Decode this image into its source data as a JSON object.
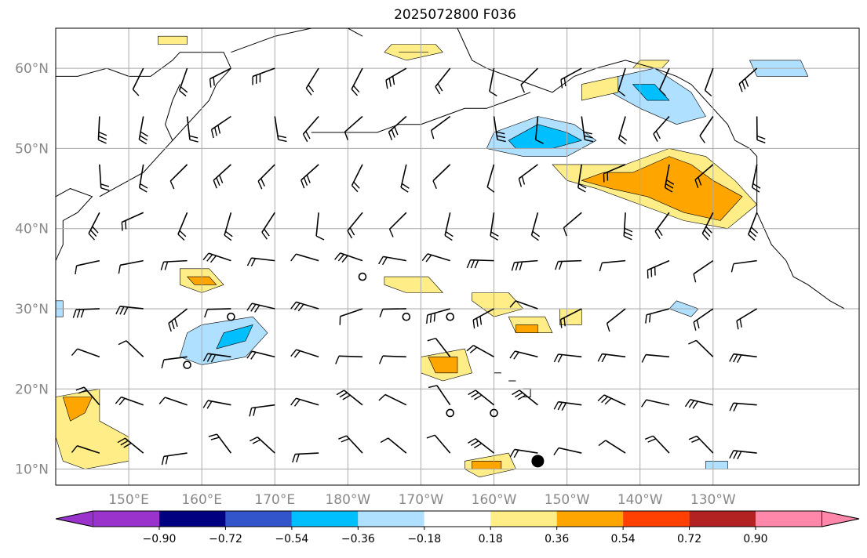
{
  "title": "2025072800 F036",
  "map": {
    "region": "North Pacific",
    "lat_range": [
      8,
      65
    ],
    "lon_range": [
      140,
      250
    ],
    "lat_ticks": [
      "10°N",
      "20°N",
      "30°N",
      "40°N",
      "50°N",
      "60°N"
    ],
    "lat_values": [
      10,
      20,
      30,
      40,
      50,
      60
    ],
    "lon_ticks": [
      "150°E",
      "160°E",
      "170°E",
      "180°W",
      "170°W",
      "160°W",
      "150°W",
      "140°W",
      "130°W"
    ],
    "lon_values": [
      150,
      160,
      170,
      180,
      190,
      200,
      210,
      220,
      230
    ]
  },
  "colorbar": {
    "levels": [
      "−0.90",
      "−0.72",
      "−0.54",
      "−0.36",
      "−0.18",
      "0.18",
      "0.36",
      "0.54",
      "0.72",
      "0.90"
    ],
    "colors": [
      "#9933cc",
      "#000080",
      "#3355cc",
      "#00bfff",
      "#b0e0ff",
      "#ffffff",
      "#ffee88",
      "#ffa500",
      "#ff4000",
      "#b22222",
      "#ff88aa"
    ]
  },
  "colors": {
    "grid": "#aaaaaa",
    "coast": "#000000",
    "light_blue": "#b0e0ff",
    "cyan": "#00bfff",
    "light_yellow": "#ffee88",
    "orange": "#ffa500"
  },
  "contours": [
    {
      "level": "0.18",
      "color": "#ffee88",
      "shape": [
        [
          218,
          48
        ],
        [
          224,
          50
        ],
        [
          229,
          49
        ],
        [
          233,
          46
        ],
        [
          236,
          43
        ],
        [
          232,
          40
        ],
        [
          226,
          41
        ],
        [
          220,
          43
        ],
        [
          214,
          45
        ],
        [
          210,
          46
        ],
        [
          208,
          48
        ],
        [
          212,
          48
        ]
      ]
    },
    {
      "level": "0.36",
      "color": "#ffa500",
      "shape": [
        [
          219,
          47
        ],
        [
          224,
          49
        ],
        [
          227,
          48
        ],
        [
          230,
          46
        ],
        [
          234,
          44
        ],
        [
          231,
          41
        ],
        [
          226,
          42
        ],
        [
          221,
          44
        ],
        [
          216,
          45
        ],
        [
          212,
          46
        ],
        [
          215,
          47
        ]
      ]
    },
    {
      "level": "-0.18",
      "color": "#b0e0ff",
      "shape": [
        [
          200,
          52
        ],
        [
          206,
          54
        ],
        [
          211,
          53
        ],
        [
          214,
          51
        ],
        [
          210,
          49
        ],
        [
          204,
          49
        ],
        [
          199,
          50
        ]
      ]
    },
    {
      "level": "-0.36",
      "color": "#00bfff",
      "shape": [
        [
          202,
          51
        ],
        [
          206,
          53
        ],
        [
          210,
          52
        ],
        [
          212,
          51
        ],
        [
          208,
          50
        ],
        [
          203,
          50
        ]
      ]
    },
    {
      "level": "-0.18",
      "color": "#b0e0ff",
      "shape": [
        [
          217,
          59
        ],
        [
          222,
          60
        ],
        [
          227,
          57
        ],
        [
          229,
          54
        ],
        [
          225,
          53
        ],
        [
          220,
          55
        ],
        [
          216,
          57
        ]
      ]
    },
    {
      "level": "-0.36",
      "color": "#00bfff",
      "shape": [
        [
          219,
          58
        ],
        [
          222,
          58
        ],
        [
          224,
          56
        ],
        [
          221,
          56
        ]
      ]
    },
    {
      "level": "-0.18",
      "color": "#b0e0ff",
      "shape": [
        [
          160,
          28
        ],
        [
          167,
          29
        ],
        [
          169,
          27
        ],
        [
          166,
          24
        ],
        [
          160,
          23
        ],
        [
          157,
          24
        ],
        [
          158,
          27
        ]
      ]
    },
    {
      "level": "-0.36",
      "color": "#00bfff",
      "shape": [
        [
          163,
          27
        ],
        [
          167,
          28
        ],
        [
          166,
          26
        ],
        [
          162,
          25
        ]
      ]
    },
    {
      "level": "0.18",
      "color": "#ffee88",
      "shape": [
        [
          140,
          19
        ],
        [
          146,
          20
        ],
        [
          146,
          16
        ],
        [
          150,
          14
        ],
        [
          150,
          11
        ],
        [
          144,
          10
        ],
        [
          141,
          11
        ],
        [
          140,
          14
        ]
      ]
    },
    {
      "level": "0.36",
      "color": "#ffa500",
      "shape": [
        [
          141,
          19
        ],
        [
          145,
          19
        ],
        [
          144,
          17
        ],
        [
          142,
          16
        ]
      ]
    },
    {
      "level": "0.18",
      "color": "#ffee88",
      "shape": [
        [
          157,
          35
        ],
        [
          161,
          35
        ],
        [
          163,
          33
        ],
        [
          160,
          32
        ],
        [
          157,
          33
        ]
      ]
    },
    {
      "level": "0.36",
      "color": "#ffa500",
      "shape": [
        [
          158,
          34
        ],
        [
          161,
          34
        ],
        [
          162,
          33
        ],
        [
          159,
          33
        ]
      ]
    },
    {
      "level": "0.18",
      "color": "#ffee88",
      "shape": [
        [
          190,
          24
        ],
        [
          196,
          25
        ],
        [
          197,
          22
        ],
        [
          193,
          21
        ],
        [
          190,
          22
        ]
      ]
    },
    {
      "level": "0.36",
      "color": "#ffa500",
      "shape": [
        [
          191,
          24
        ],
        [
          195,
          24
        ],
        [
          195,
          22
        ],
        [
          192,
          22
        ]
      ]
    },
    {
      "level": "0.18",
      "color": "#ffee88",
      "shape": [
        [
          197,
          32
        ],
        [
          202,
          32
        ],
        [
          204,
          30
        ],
        [
          200,
          29
        ],
        [
          197,
          31
        ]
      ]
    },
    {
      "level": "0.18",
      "color": "#ffee88",
      "shape": [
        [
          202,
          29
        ],
        [
          207,
          29
        ],
        [
          208,
          27
        ],
        [
          203,
          27
        ]
      ]
    },
    {
      "level": "0.36",
      "color": "#ffa500",
      "shape": [
        [
          203,
          28
        ],
        [
          206,
          28
        ],
        [
          206,
          27
        ],
        [
          203,
          27
        ]
      ]
    },
    {
      "level": "0.18",
      "color": "#ffee88",
      "shape": [
        [
          185,
          34
        ],
        [
          191,
          34
        ],
        [
          193,
          32
        ],
        [
          188,
          32
        ],
        [
          185,
          33
        ]
      ]
    },
    {
      "level": "0.18",
      "color": "#ffee88",
      "shape": [
        [
          196,
          11
        ],
        [
          202,
          12
        ],
        [
          203,
          10
        ],
        [
          198,
          9
        ],
        [
          196,
          10
        ]
      ]
    },
    {
      "level": "0.36",
      "color": "#ffa500",
      "shape": [
        [
          197,
          11
        ],
        [
          201,
          11
        ],
        [
          201,
          10
        ],
        [
          197,
          10
        ]
      ]
    },
    {
      "level": "0.18",
      "color": "#ffee88",
      "shape": [
        [
          186,
          63
        ],
        [
          192,
          63
        ],
        [
          193,
          62
        ],
        [
          188,
          61
        ],
        [
          185,
          62
        ]
      ]
    },
    {
      "level": "0.36",
      "color": "#ffa500",
      "shape": [
        [
          187,
          62
        ],
        [
          191,
          62
        ],
        [
          191,
          62
        ],
        [
          187,
          62
        ]
      ]
    },
    {
      "level": "0.18",
      "color": "#ffee88",
      "shape": [
        [
          212,
          58
        ],
        [
          217,
          59
        ],
        [
          217,
          57
        ],
        [
          212,
          56
        ]
      ]
    },
    {
      "level": "0.18",
      "color": "#ffee88",
      "shape": [
        [
          220,
          61
        ],
        [
          224,
          61
        ],
        [
          223,
          60
        ],
        [
          219,
          60
        ]
      ]
    },
    {
      "level": "-0.18",
      "color": "#b0e0ff",
      "shape": [
        [
          235,
          61
        ],
        [
          242,
          61
        ],
        [
          243,
          59
        ],
        [
          236,
          59
        ]
      ]
    },
    {
      "level": "-0.18",
      "color": "#b0e0ff",
      "shape": [
        [
          225,
          31
        ],
        [
          228,
          30
        ],
        [
          227,
          29
        ],
        [
          224,
          30
        ]
      ]
    },
    {
      "level": "-0.18",
      "color": "#b0e0ff",
      "shape": [
        [
          138,
          31
        ],
        [
          141,
          31
        ],
        [
          141,
          29
        ],
        [
          138,
          29
        ]
      ]
    },
    {
      "level": "0.18",
      "color": "#ffee88",
      "shape": [
        [
          209,
          30
        ],
        [
          212,
          30
        ],
        [
          212,
          28
        ],
        [
          209,
          28
        ]
      ]
    },
    {
      "level": "0.18",
      "color": "#ffee88",
      "shape": [
        [
          154,
          64
        ],
        [
          158,
          64
        ],
        [
          158,
          63
        ],
        [
          154,
          63
        ]
      ]
    },
    {
      "level": "-0.18",
      "color": "#b0e0ff",
      "shape": [
        [
          229,
          11
        ],
        [
          232,
          11
        ],
        [
          232,
          10
        ],
        [
          229,
          10
        ]
      ]
    }
  ],
  "wind_barbs": [
    {
      "lat": 60,
      "lon": 152
    },
    {
      "lat": 60,
      "lon": 158
    },
    {
      "lat": 60,
      "lon": 164
    },
    {
      "lat": 60,
      "lon": 170
    },
    {
      "lat": 60,
      "lon": 176
    },
    {
      "lat": 60,
      "lon": 182
    },
    {
      "lat": 60,
      "lon": 188
    },
    {
      "lat": 60,
      "lon": 194
    },
    {
      "lat": 60,
      "lon": 200
    },
    {
      "lat": 60,
      "lon": 206
    },
    {
      "lat": 60,
      "lon": 212
    },
    {
      "lat": 60,
      "lon": 218
    },
    {
      "lat": 60,
      "lon": 224
    },
    {
      "lat": 60,
      "lon": 230
    },
    {
      "lat": 60,
      "lon": 236
    },
    {
      "lat": 54,
      "lon": 146
    },
    {
      "lat": 54,
      "lon": 152
    },
    {
      "lat": 54,
      "lon": 158
    },
    {
      "lat": 54,
      "lon": 164
    },
    {
      "lat": 54,
      "lon": 170
    },
    {
      "lat": 54,
      "lon": 176
    },
    {
      "lat": 54,
      "lon": 182
    },
    {
      "lat": 54,
      "lon": 188
    },
    {
      "lat": 54,
      "lon": 194
    },
    {
      "lat": 54,
      "lon": 200
    },
    {
      "lat": 54,
      "lon": 206
    },
    {
      "lat": 54,
      "lon": 212
    },
    {
      "lat": 54,
      "lon": 218
    },
    {
      "lat": 54,
      "lon": 224
    },
    {
      "lat": 54,
      "lon": 230
    },
    {
      "lat": 54,
      "lon": 236
    },
    {
      "lat": 48,
      "lon": 146
    },
    {
      "lat": 48,
      "lon": 152
    },
    {
      "lat": 48,
      "lon": 158
    },
    {
      "lat": 48,
      "lon": 164
    },
    {
      "lat": 48,
      "lon": 170
    },
    {
      "lat": 48,
      "lon": 176
    },
    {
      "lat": 48,
      "lon": 182
    },
    {
      "lat": 48,
      "lon": 188
    },
    {
      "lat": 48,
      "lon": 194
    },
    {
      "lat": 48,
      "lon": 200
    },
    {
      "lat": 48,
      "lon": 206
    },
    {
      "lat": 48,
      "lon": 212
    },
    {
      "lat": 48,
      "lon": 218
    },
    {
      "lat": 48,
      "lon": 224
    },
    {
      "lat": 48,
      "lon": 230
    },
    {
      "lat": 48,
      "lon": 236
    },
    {
      "lat": 42,
      "lon": 146
    },
    {
      "lat": 42,
      "lon": 152
    },
    {
      "lat": 42,
      "lon": 158
    },
    {
      "lat": 42,
      "lon": 164
    },
    {
      "lat": 42,
      "lon": 170
    },
    {
      "lat": 42,
      "lon": 176
    },
    {
      "lat": 42,
      "lon": 182
    },
    {
      "lat": 42,
      "lon": 188
    },
    {
      "lat": 42,
      "lon": 194
    },
    {
      "lat": 42,
      "lon": 200
    },
    {
      "lat": 42,
      "lon": 206
    },
    {
      "lat": 42,
      "lon": 212
    },
    {
      "lat": 42,
      "lon": 218
    },
    {
      "lat": 42,
      "lon": 224
    },
    {
      "lat": 42,
      "lon": 230
    },
    {
      "lat": 42,
      "lon": 236
    },
    {
      "lat": 36,
      "lon": 146
    },
    {
      "lat": 36,
      "lon": 152
    },
    {
      "lat": 36,
      "lon": 158
    },
    {
      "lat": 36,
      "lon": 164
    },
    {
      "lat": 36,
      "lon": 170
    },
    {
      "lat": 36,
      "lon": 176
    },
    {
      "lat": 36,
      "lon": 182
    },
    {
      "lat": 36,
      "lon": 188
    },
    {
      "lat": 36,
      "lon": 194
    },
    {
      "lat": 36,
      "lon": 200
    },
    {
      "lat": 36,
      "lon": 206
    },
    {
      "lat": 36,
      "lon": 212
    },
    {
      "lat": 36,
      "lon": 218
    },
    {
      "lat": 36,
      "lon": 224
    },
    {
      "lat": 36,
      "lon": 230
    },
    {
      "lat": 36,
      "lon": 236
    },
    {
      "lat": 30,
      "lon": 146
    },
    {
      "lat": 30,
      "lon": 152
    },
    {
      "lat": 30,
      "lon": 158
    },
    {
      "lat": 30,
      "lon": 164
    },
    {
      "lat": 30,
      "lon": 170
    },
    {
      "lat": 30,
      "lon": 176
    },
    {
      "lat": 30,
      "lon": 182
    },
    {
      "lat": 30,
      "lon": 188
    },
    {
      "lat": 30,
      "lon": 194
    },
    {
      "lat": 30,
      "lon": 200
    },
    {
      "lat": 30,
      "lon": 206
    },
    {
      "lat": 30,
      "lon": 212
    },
    {
      "lat": 30,
      "lon": 218
    },
    {
      "lat": 30,
      "lon": 224
    },
    {
      "lat": 30,
      "lon": 230
    },
    {
      "lat": 30,
      "lon": 236
    },
    {
      "lat": 24,
      "lon": 146
    },
    {
      "lat": 24,
      "lon": 152
    },
    {
      "lat": 24,
      "lon": 158
    },
    {
      "lat": 24,
      "lon": 164
    },
    {
      "lat": 24,
      "lon": 170
    },
    {
      "lat": 24,
      "lon": 176
    },
    {
      "lat": 24,
      "lon": 182
    },
    {
      "lat": 24,
      "lon": 188
    },
    {
      "lat": 24,
      "lon": 194
    },
    {
      "lat": 24,
      "lon": 200
    },
    {
      "lat": 24,
      "lon": 206
    },
    {
      "lat": 24,
      "lon": 212
    },
    {
      "lat": 24,
      "lon": 218
    },
    {
      "lat": 24,
      "lon": 224
    },
    {
      "lat": 24,
      "lon": 230
    },
    {
      "lat": 24,
      "lon": 236
    },
    {
      "lat": 18,
      "lon": 146
    },
    {
      "lat": 18,
      "lon": 152
    },
    {
      "lat": 18,
      "lon": 158
    },
    {
      "lat": 18,
      "lon": 164
    },
    {
      "lat": 18,
      "lon": 170
    },
    {
      "lat": 18,
      "lon": 176
    },
    {
      "lat": 18,
      "lon": 182
    },
    {
      "lat": 18,
      "lon": 188
    },
    {
      "lat": 18,
      "lon": 194
    },
    {
      "lat": 18,
      "lon": 200
    },
    {
      "lat": 18,
      "lon": 206
    },
    {
      "lat": 18,
      "lon": 212
    },
    {
      "lat": 18,
      "lon": 218
    },
    {
      "lat": 18,
      "lon": 224
    },
    {
      "lat": 18,
      "lon": 230
    },
    {
      "lat": 18,
      "lon": 236
    },
    {
      "lat": 12,
      "lon": 146
    },
    {
      "lat": 12,
      "lon": 152
    },
    {
      "lat": 12,
      "lon": 158
    },
    {
      "lat": 12,
      "lon": 164
    },
    {
      "lat": 12,
      "lon": 170
    },
    {
      "lat": 12,
      "lon": 176
    },
    {
      "lat": 12,
      "lon": 182
    },
    {
      "lat": 12,
      "lon": 188
    },
    {
      "lat": 12,
      "lon": 194
    },
    {
      "lat": 12,
      "lon": 200
    },
    {
      "lat": 12,
      "lon": 206
    },
    {
      "lat": 12,
      "lon": 212
    },
    {
      "lat": 12,
      "lon": 218
    },
    {
      "lat": 12,
      "lon": 224
    },
    {
      "lat": 12,
      "lon": 230
    },
    {
      "lat": 12,
      "lon": 236
    }
  ],
  "calm_markers": [
    {
      "lat": 34,
      "lon": 182
    },
    {
      "lat": 29,
      "lon": 164
    },
    {
      "lat": 29,
      "lon": 188
    },
    {
      "lat": 29,
      "lon": 194
    },
    {
      "lat": 23,
      "lon": 158
    },
    {
      "lat": 17,
      "lon": 194
    },
    {
      "lat": 17,
      "lon": 200
    }
  ],
  "storm_marker": {
    "lat": 11,
    "lon": 206
  }
}
